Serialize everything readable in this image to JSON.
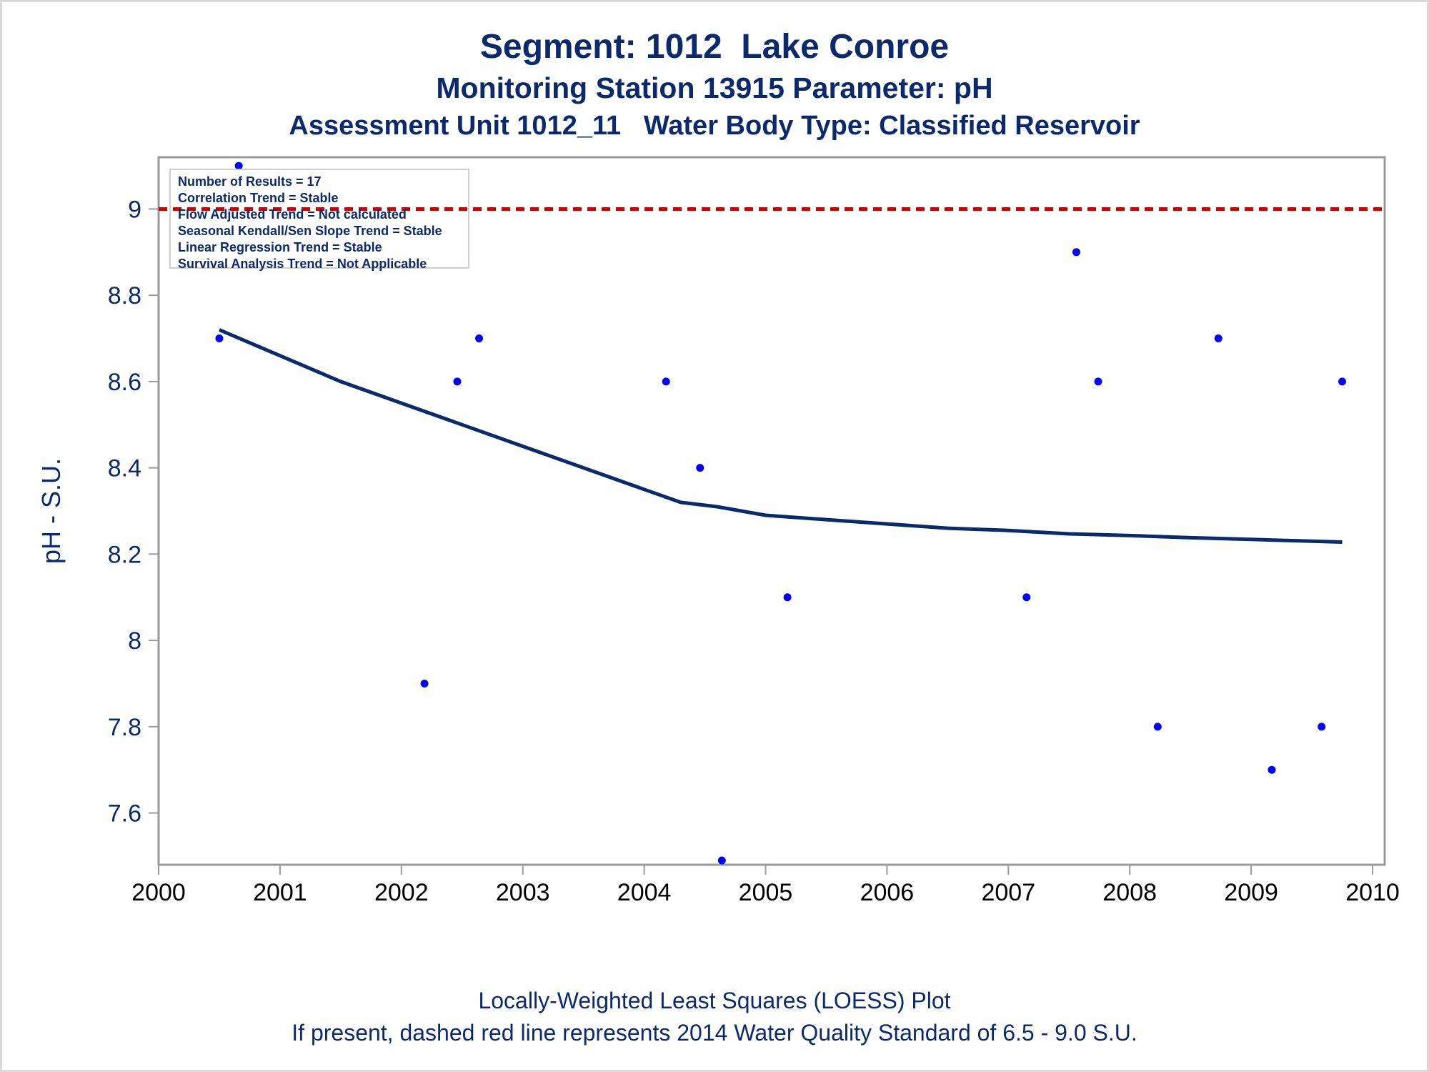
{
  "title": "Segment: 1012  Lake Conroe",
  "subtitle1": "Monitoring Station 13915 Parameter: pH",
  "subtitle2": "Assessment Unit 1012_11   Water Body Type: Classified Reservoir",
  "footnote1": "Locally-Weighted Least Squares (LOESS) Plot",
  "footnote2": "If present, dashed red line represents 2014 Water Quality Standard of 6.5 - 9.0 S.U.",
  "stats": [
    "Number of Results = 17",
    "Correlation Trend = Stable",
    "Flow Adjusted Trend = Not calculated",
    "Seasonal Kendall/Sen Slope Trend = Stable",
    "Linear Regression Trend = Stable",
    "Survival Analysis Trend = Not Applicable"
  ],
  "colors": {
    "text": "#0b2a6e",
    "points": "#0000ff",
    "loess": "#0b2a6e",
    "standard_line": "#cc0000",
    "axis": "#9a9a9a"
  },
  "chart_data": {
    "type": "scatter",
    "ylabel": "pH - S.U.",
    "xlabel": "",
    "xlim": [
      2000,
      2010.1
    ],
    "ylim": [
      7.48,
      9.12
    ],
    "xticks": [
      2000,
      2001,
      2002,
      2003,
      2004,
      2005,
      2006,
      2007,
      2008,
      2009,
      2010
    ],
    "yticks": [
      7.6,
      7.8,
      8,
      8.2,
      8.4,
      8.6,
      8.8,
      9
    ],
    "ytick_labels": [
      "7.6",
      "7.8",
      "8",
      "8.2",
      "8.4",
      "8.6",
      "8.8",
      "9"
    ],
    "standard_line": 9.0,
    "points": [
      {
        "x": 2000.5,
        "y": 8.7
      },
      {
        "x": 2000.66,
        "y": 9.1
      },
      {
        "x": 2002.19,
        "y": 7.9
      },
      {
        "x": 2002.46,
        "y": 8.6
      },
      {
        "x": 2002.64,
        "y": 8.7
      },
      {
        "x": 2004.18,
        "y": 8.6
      },
      {
        "x": 2004.46,
        "y": 8.4
      },
      {
        "x": 2004.64,
        "y": 7.49
      },
      {
        "x": 2005.18,
        "y": 8.1
      },
      {
        "x": 2007.15,
        "y": 8.1
      },
      {
        "x": 2007.56,
        "y": 8.9
      },
      {
        "x": 2007.74,
        "y": 8.6
      },
      {
        "x": 2008.23,
        "y": 7.8
      },
      {
        "x": 2008.73,
        "y": 8.7
      },
      {
        "x": 2009.17,
        "y": 7.7
      },
      {
        "x": 2009.58,
        "y": 7.8
      },
      {
        "x": 2009.75,
        "y": 8.6
      }
    ],
    "loess": [
      {
        "x": 2000.5,
        "y": 8.72
      },
      {
        "x": 2001.0,
        "y": 8.66
      },
      {
        "x": 2001.5,
        "y": 8.6
      },
      {
        "x": 2002.0,
        "y": 8.55
      },
      {
        "x": 2002.5,
        "y": 8.5
      },
      {
        "x": 2003.0,
        "y": 8.45
      },
      {
        "x": 2003.5,
        "y": 8.4
      },
      {
        "x": 2004.0,
        "y": 8.35
      },
      {
        "x": 2004.3,
        "y": 8.32
      },
      {
        "x": 2004.6,
        "y": 8.31
      },
      {
        "x": 2005.0,
        "y": 8.29
      },
      {
        "x": 2005.5,
        "y": 8.28
      },
      {
        "x": 2006.0,
        "y": 8.27
      },
      {
        "x": 2006.5,
        "y": 8.26
      },
      {
        "x": 2007.0,
        "y": 8.255
      },
      {
        "x": 2007.5,
        "y": 8.247
      },
      {
        "x": 2008.0,
        "y": 8.243
      },
      {
        "x": 2008.5,
        "y": 8.238
      },
      {
        "x": 2009.0,
        "y": 8.234
      },
      {
        "x": 2009.5,
        "y": 8.23
      },
      {
        "x": 2009.75,
        "y": 8.228
      }
    ]
  }
}
